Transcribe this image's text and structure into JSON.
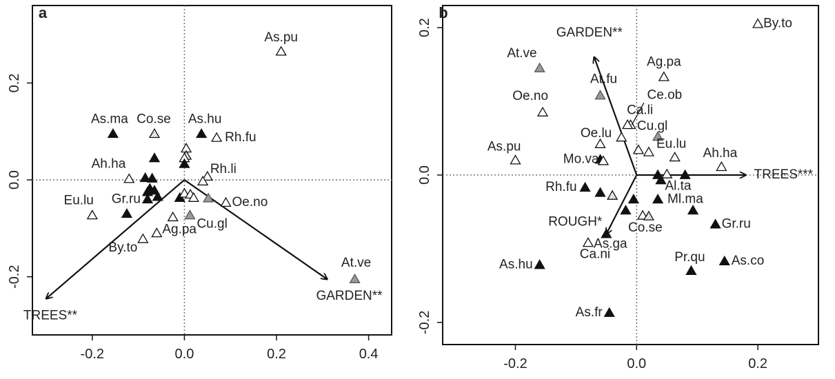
{
  "chart_data": [
    {
      "type": "scatter",
      "panel_label": "a",
      "xlim": [
        -0.33,
        0.45
      ],
      "ylim": [
        -0.32,
        0.36
      ],
      "x_ticks": [
        -0.2,
        0.0,
        0.2,
        0.4
      ],
      "x_tick_labels": [
        "-0.2",
        "0.0",
        "0.2",
        "0.4"
      ],
      "y_ticks": [
        -0.2,
        0.0,
        0.2
      ],
      "y_tick_labels": [
        "-0.2",
        "0.0",
        "0.2"
      ],
      "reference_lines": "dotted lines at x=0 and y=0",
      "vectors": [
        {
          "label": "TREES**",
          "x": -0.3,
          "y": -0.245
        },
        {
          "label": "GARDEN**",
          "x": 0.31,
          "y": -0.205
        }
      ],
      "points": [
        {
          "label": "As.pu",
          "x": 0.21,
          "y": 0.265,
          "fill": "open"
        },
        {
          "label": "As.ma",
          "x": -0.155,
          "y": 0.095,
          "fill": "black"
        },
        {
          "label": "Co.se",
          "x": -0.065,
          "y": 0.095,
          "fill": "hatched"
        },
        {
          "label": "As.hu",
          "x": 0.037,
          "y": 0.095,
          "fill": "black"
        },
        {
          "label": "Rh.fu",
          "x": 0.07,
          "y": 0.087,
          "fill": "open"
        },
        {
          "label": "",
          "x": 0.004,
          "y": 0.065,
          "fill": "open"
        },
        {
          "label": "",
          "x": 0.004,
          "y": 0.05,
          "fill": "hatched"
        },
        {
          "label": "",
          "x": 0.0,
          "y": 0.045,
          "fill": "open"
        },
        {
          "label": "",
          "x": -0.065,
          "y": 0.045,
          "fill": "black"
        },
        {
          "label": "",
          "x": 0.0,
          "y": 0.033,
          "fill": "black"
        },
        {
          "label": "Ah.ha",
          "x": -0.12,
          "y": 0.002,
          "fill": "open"
        },
        {
          "label": "",
          "x": -0.085,
          "y": 0.004,
          "fill": "black"
        },
        {
          "label": "",
          "x": -0.07,
          "y": 0.003,
          "fill": "black"
        },
        {
          "label": "",
          "x": -0.075,
          "y": -0.018,
          "fill": "black"
        },
        {
          "label": "",
          "x": -0.065,
          "y": -0.022,
          "fill": "black"
        },
        {
          "label": "",
          "x": -0.08,
          "y": -0.025,
          "fill": "black"
        },
        {
          "label": "",
          "x": -0.058,
          "y": -0.035,
          "fill": "black"
        },
        {
          "label": "",
          "x": -0.08,
          "y": -0.04,
          "fill": "black"
        },
        {
          "label": "",
          "x": -0.01,
          "y": -0.037,
          "fill": "black"
        },
        {
          "label": "Rh.li",
          "x": 0.05,
          "y": 0.007,
          "fill": "open"
        },
        {
          "label": "",
          "x": 0.04,
          "y": -0.003,
          "fill": "open"
        },
        {
          "label": "",
          "x": 0.0,
          "y": -0.028,
          "fill": "open"
        },
        {
          "label": "",
          "x": 0.013,
          "y": -0.03,
          "fill": "open"
        },
        {
          "label": "",
          "x": 0.02,
          "y": -0.037,
          "fill": "open"
        },
        {
          "label": "",
          "x": 0.052,
          "y": -0.038,
          "fill": "grey"
        },
        {
          "label": "Oe.no",
          "x": 0.09,
          "y": -0.047,
          "fill": "open"
        },
        {
          "label": "Eu.lu",
          "x": -0.2,
          "y": -0.073,
          "fill": "open"
        },
        {
          "label": "Gr.ru",
          "x": -0.125,
          "y": -0.07,
          "fill": "black"
        },
        {
          "label": "",
          "x": -0.025,
          "y": -0.077,
          "fill": "open"
        },
        {
          "label": "Cu.gl",
          "x": 0.012,
          "y": -0.073,
          "fill": "grey"
        },
        {
          "label": "Ag.pa",
          "x": -0.06,
          "y": -0.11,
          "fill": "open"
        },
        {
          "label": "By.to",
          "x": -0.09,
          "y": -0.122,
          "fill": "open"
        },
        {
          "label": "At.ve",
          "x": 0.37,
          "y": -0.205,
          "fill": "grey"
        }
      ]
    },
    {
      "type": "scatter",
      "panel_label": "b",
      "xlim": [
        -0.32,
        0.3
      ],
      "ylim": [
        -0.23,
        0.23
      ],
      "x_ticks": [
        -0.2,
        0.0,
        0.2
      ],
      "x_tick_labels": [
        "-0.2",
        "0.0",
        "0.2"
      ],
      "y_ticks": [
        -0.2,
        0.0,
        0.2
      ],
      "y_tick_labels": [
        "-0.2",
        "0.0",
        "0.2"
      ],
      "reference_lines": "dotted lines at x=0 and y=0",
      "vectors": [
        {
          "label": "GARDEN**",
          "x": -0.07,
          "y": 0.16
        },
        {
          "label": "TREES***",
          "x": 0.18,
          "y": 0.0
        },
        {
          "label": "ROUGH*",
          "x": -0.05,
          "y": -0.08
        }
      ],
      "points": [
        {
          "label": "By.to",
          "x": 0.2,
          "y": 0.205,
          "fill": "open"
        },
        {
          "label": "At.ve",
          "x": -0.16,
          "y": 0.145,
          "fill": "grey"
        },
        {
          "label": "Ag.pa",
          "x": 0.045,
          "y": 0.133,
          "fill": "open"
        },
        {
          "label": "At.fu",
          "x": -0.06,
          "y": 0.108,
          "fill": "grey"
        },
        {
          "label": "Oe.no",
          "x": -0.155,
          "y": 0.085,
          "fill": "open"
        },
        {
          "label": "Ce.ob",
          "x": -0.01,
          "y": 0.068,
          "fill": "open"
        },
        {
          "label": "Ca.li",
          "x": -0.015,
          "y": 0.068,
          "fill": "open"
        },
        {
          "label": "Cu.gl",
          "x": 0.035,
          "y": 0.052,
          "fill": "grey"
        },
        {
          "label": "Oe.lu",
          "x": -0.06,
          "y": 0.042,
          "fill": "open"
        },
        {
          "label": "",
          "x": -0.025,
          "y": 0.051,
          "fill": "open"
        },
        {
          "label": "",
          "x": 0.003,
          "y": 0.034,
          "fill": "open"
        },
        {
          "label": "",
          "x": 0.02,
          "y": 0.031,
          "fill": "open"
        },
        {
          "label": "Eu.lu",
          "x": 0.063,
          "y": 0.024,
          "fill": "open"
        },
        {
          "label": "Ah.ha",
          "x": 0.14,
          "y": 0.011,
          "fill": "open"
        },
        {
          "label": "As.pu",
          "x": -0.2,
          "y": 0.02,
          "fill": "open"
        },
        {
          "label": "Mo.va",
          "x": -0.06,
          "y": 0.021,
          "fill": "black"
        },
        {
          "label": "",
          "x": -0.055,
          "y": 0.019,
          "fill": "open"
        },
        {
          "label": "",
          "x": 0.035,
          "y": 0.0,
          "fill": "black"
        },
        {
          "label": "",
          "x": 0.05,
          "y": 0.001,
          "fill": "open"
        },
        {
          "label": "",
          "x": 0.08,
          "y": 0.0,
          "fill": "black"
        },
        {
          "label": "Al.ta",
          "x": 0.04,
          "y": -0.007,
          "fill": "black"
        },
        {
          "label": "Rh.fu",
          "x": -0.085,
          "y": -0.017,
          "fill": "black"
        },
        {
          "label": "",
          "x": -0.06,
          "y": -0.024,
          "fill": "black"
        },
        {
          "label": "",
          "x": -0.04,
          "y": -0.028,
          "fill": "hatched"
        },
        {
          "label": "",
          "x": -0.005,
          "y": -0.033,
          "fill": "black"
        },
        {
          "label": "Ml.ma",
          "x": 0.035,
          "y": -0.033,
          "fill": "black"
        },
        {
          "label": "",
          "x": -0.018,
          "y": -0.048,
          "fill": "black"
        },
        {
          "label": "",
          "x": 0.01,
          "y": -0.055,
          "fill": "open"
        },
        {
          "label": "Co.se",
          "x": 0.02,
          "y": -0.056,
          "fill": "hatched"
        },
        {
          "label": "",
          "x": 0.093,
          "y": -0.048,
          "fill": "black"
        },
        {
          "label": "Gr.ru",
          "x": 0.13,
          "y": -0.067,
          "fill": "black"
        },
        {
          "label": "As.ga",
          "x": -0.05,
          "y": -0.08,
          "fill": "black"
        },
        {
          "label": "Ca.ni",
          "x": -0.08,
          "y": -0.092,
          "fill": "open"
        },
        {
          "label": "As.hu",
          "x": -0.16,
          "y": -0.122,
          "fill": "black"
        },
        {
          "label": "As.co",
          "x": 0.145,
          "y": -0.117,
          "fill": "black"
        },
        {
          "label": "Pr.qu",
          "x": 0.09,
          "y": -0.13,
          "fill": "black"
        },
        {
          "label": "As.fr",
          "x": -0.045,
          "y": -0.187,
          "fill": "black"
        }
      ]
    }
  ]
}
